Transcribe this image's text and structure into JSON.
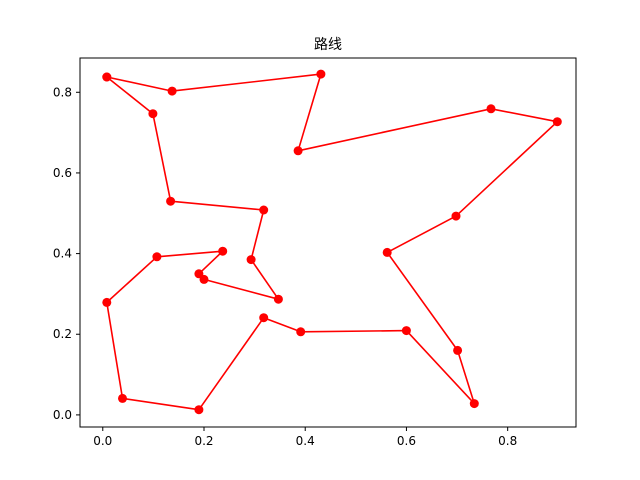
{
  "chart_data": {
    "type": "line",
    "title": "路线",
    "xlabel": "",
    "ylabel": "",
    "xlim": [
      -0.045,
      0.935
    ],
    "ylim": [
      -0.03,
      0.885
    ],
    "xticks": [
      0.0,
      0.2,
      0.4,
      0.6,
      0.8
    ],
    "xtick_labels": [
      "0.0",
      "0.2",
      "0.4",
      "0.6",
      "0.8"
    ],
    "yticks": [
      0.0,
      0.2,
      0.4,
      0.6,
      0.8
    ],
    "ytick_labels": [
      "0.0",
      "0.2",
      "0.4",
      "0.6",
      "0.8"
    ],
    "grid": false,
    "series": [
      {
        "color": "#ff0000",
        "marker": "circle",
        "x": [
          0.008,
          0.137,
          0.431,
          0.386,
          0.767,
          0.898,
          0.698,
          0.562,
          0.701,
          0.734,
          0.6,
          0.391,
          0.318,
          0.19,
          0.039,
          0.008,
          0.107,
          0.237,
          0.19,
          0.2,
          0.347,
          0.293,
          0.318,
          0.134,
          0.099,
          0.008
        ],
        "y": [
          0.838,
          0.803,
          0.845,
          0.655,
          0.759,
          0.727,
          0.493,
          0.403,
          0.16,
          0.028,
          0.209,
          0.206,
          0.241,
          0.013,
          0.041,
          0.279,
          0.392,
          0.406,
          0.35,
          0.336,
          0.287,
          0.385,
          0.508,
          0.53,
          0.747,
          0.838
        ]
      }
    ]
  }
}
